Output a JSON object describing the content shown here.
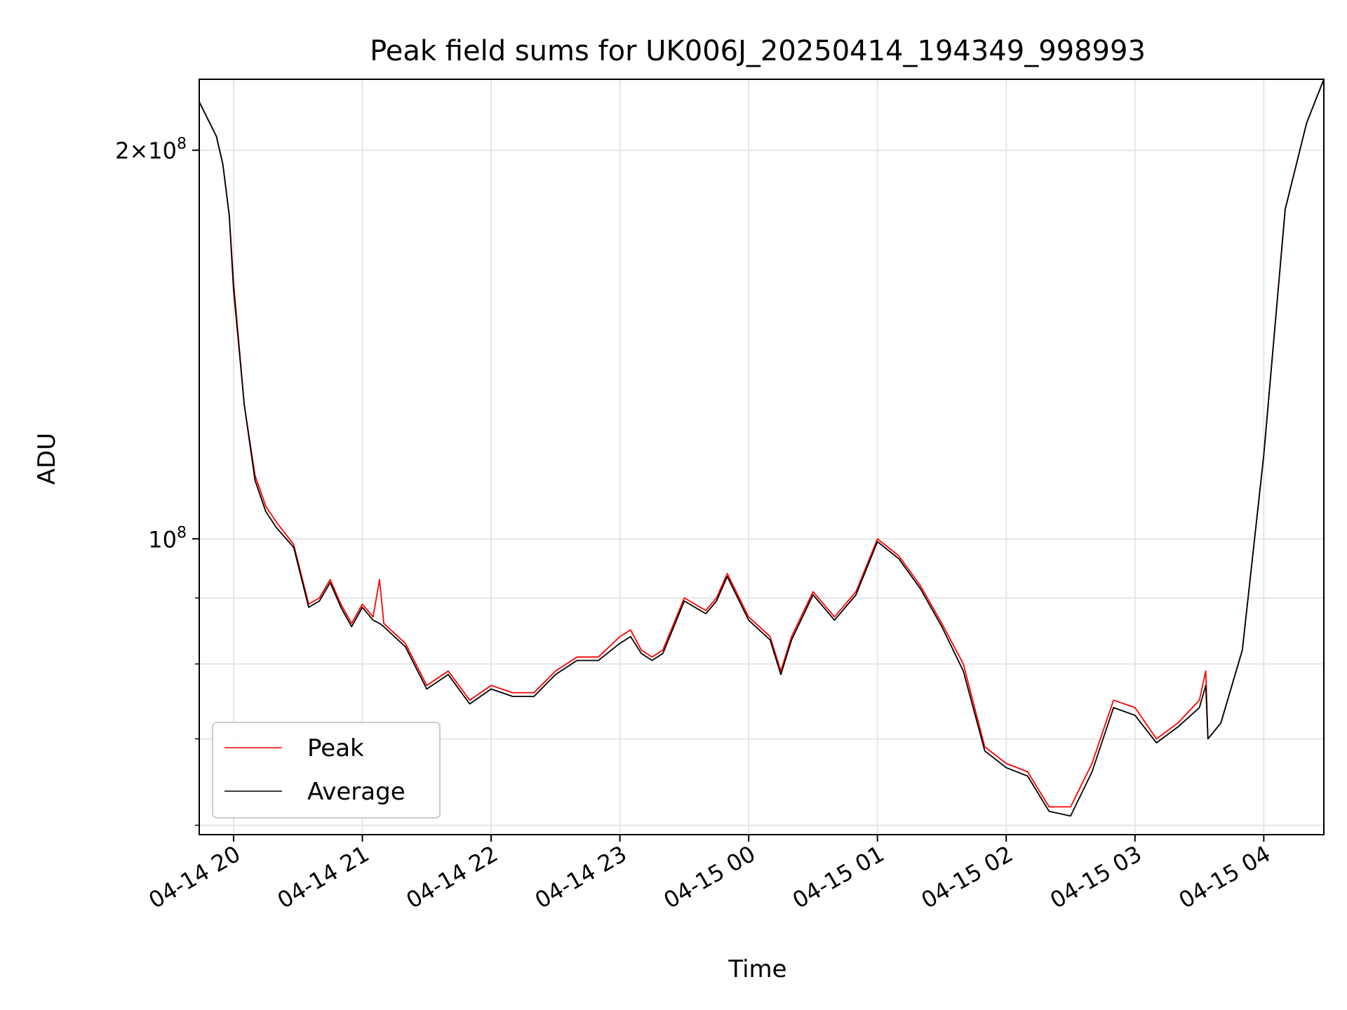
{
  "chart_data": {
    "type": "line",
    "title": "Peak field sums for UK006J_20250414_194349_998993",
    "xlabel": "Time",
    "ylabel": "ADU",
    "y_scale": "log",
    "grid": true,
    "legend_position": "lower-left",
    "xlim": [
      "2025-04-14 19:44",
      "2025-04-15 04:28"
    ],
    "ylim": [
      59000000,
      227000000
    ],
    "x_ticks": [
      "2025-04-14 20:00",
      "2025-04-14 21:00",
      "2025-04-14 22:00",
      "2025-04-14 23:00",
      "2025-04-15 00:00",
      "2025-04-15 01:00",
      "2025-04-15 02:00",
      "2025-04-15 03:00",
      "2025-04-15 04:00"
    ],
    "x_tick_labels": [
      "04-14 20",
      "04-14 21",
      "04-14 22",
      "04-14 23",
      "04-15 00",
      "04-15 01",
      "04-15 02",
      "04-15 03",
      "04-15 04"
    ],
    "y_major_ticks": [
      100000000,
      200000000
    ],
    "y_major_tick_labels": [
      {
        "mantissa": "",
        "base": "10",
        "exp": "8"
      },
      {
        "mantissa": "2×",
        "base": "10",
        "exp": "8"
      }
    ],
    "y_minor_ticks": [
      60000000,
      70000000,
      80000000,
      90000000
    ],
    "series": [
      {
        "name": "Peak",
        "color": "#ff0000",
        "points": [
          [
            "2025-04-14 19:44",
            218000000
          ],
          [
            "2025-04-14 19:52",
            205000000
          ],
          [
            "2025-04-14 19:55",
            195000000
          ],
          [
            "2025-04-14 19:58",
            178000000
          ],
          [
            "2025-04-14 20:00",
            158000000
          ],
          [
            "2025-04-14 20:05",
            127000000
          ],
          [
            "2025-04-14 20:10",
            112000000
          ],
          [
            "2025-04-14 20:15",
            106000000
          ],
          [
            "2025-04-14 20:20",
            103000000
          ],
          [
            "2025-04-14 20:28",
            99000000
          ],
          [
            "2025-04-14 20:35",
            89000000
          ],
          [
            "2025-04-14 20:40",
            90000000
          ],
          [
            "2025-04-14 20:45",
            93000000
          ],
          [
            "2025-04-14 20:50",
            89000000
          ],
          [
            "2025-04-14 20:55",
            86000000
          ],
          [
            "2025-04-14 21:00",
            89000000
          ],
          [
            "2025-04-14 21:05",
            87000000
          ],
          [
            "2025-04-14 21:08",
            93000000
          ],
          [
            "2025-04-14 21:10",
            86000000
          ],
          [
            "2025-04-14 21:20",
            83000000
          ],
          [
            "2025-04-14 21:30",
            77000000
          ],
          [
            "2025-04-14 21:40",
            79000000
          ],
          [
            "2025-04-14 21:50",
            75000000
          ],
          [
            "2025-04-14 22:00",
            77000000
          ],
          [
            "2025-04-14 22:10",
            76000000
          ],
          [
            "2025-04-14 22:20",
            76000000
          ],
          [
            "2025-04-14 22:30",
            79000000
          ],
          [
            "2025-04-14 22:40",
            81000000
          ],
          [
            "2025-04-14 22:50",
            81000000
          ],
          [
            "2025-04-14 23:00",
            84000000
          ],
          [
            "2025-04-14 23:05",
            85000000
          ],
          [
            "2025-04-14 23:10",
            82000000
          ],
          [
            "2025-04-14 23:15",
            81000000
          ],
          [
            "2025-04-14 23:20",
            82000000
          ],
          [
            "2025-04-14 23:30",
            90000000
          ],
          [
            "2025-04-14 23:40",
            88000000
          ],
          [
            "2025-04-14 23:45",
            90000000
          ],
          [
            "2025-04-14 23:50",
            94000000
          ],
          [
            "2025-04-15 00:00",
            87000000
          ],
          [
            "2025-04-15 00:10",
            84000000
          ],
          [
            "2025-04-15 00:15",
            79000000
          ],
          [
            "2025-04-15 00:20",
            84000000
          ],
          [
            "2025-04-15 00:30",
            91000000
          ],
          [
            "2025-04-15 00:40",
            87000000
          ],
          [
            "2025-04-15 00:50",
            91000000
          ],
          [
            "2025-04-15 01:00",
            100000000
          ],
          [
            "2025-04-15 01:10",
            97000000
          ],
          [
            "2025-04-15 01:20",
            92000000
          ],
          [
            "2025-04-15 01:30",
            86000000
          ],
          [
            "2025-04-15 01:40",
            80000000
          ],
          [
            "2025-04-15 01:50",
            69000000
          ],
          [
            "2025-04-15 02:00",
            67000000
          ],
          [
            "2025-04-15 02:10",
            66000000
          ],
          [
            "2025-04-15 02:20",
            62000000
          ],
          [
            "2025-04-15 02:30",
            62000000
          ],
          [
            "2025-04-15 02:40",
            67000000
          ],
          [
            "2025-04-15 02:50",
            75000000
          ],
          [
            "2025-04-15 03:00",
            74000000
          ],
          [
            "2025-04-15 03:10",
            70000000
          ],
          [
            "2025-04-15 03:20",
            72000000
          ],
          [
            "2025-04-15 03:30",
            75000000
          ],
          [
            "2025-04-15 03:33",
            79000000
          ],
          [
            "2025-04-15 03:34",
            70000000
          ],
          [
            "2025-04-15 03:40",
            72000000
          ],
          [
            "2025-04-15 03:50",
            82000000
          ],
          [
            "2025-04-15 04:00",
            116000000
          ],
          [
            "2025-04-15 04:10",
            180000000
          ],
          [
            "2025-04-15 04:20",
            210000000
          ],
          [
            "2025-04-15 04:28",
            227000000
          ]
        ]
      },
      {
        "name": "Average",
        "color": "#000000",
        "points": [
          [
            "2025-04-14 19:44",
            218000000
          ],
          [
            "2025-04-14 19:52",
            205000000
          ],
          [
            "2025-04-14 19:55",
            195000000
          ],
          [
            "2025-04-14 19:58",
            178000000
          ],
          [
            "2025-04-14 20:00",
            156000000
          ],
          [
            "2025-04-14 20:05",
            127000000
          ],
          [
            "2025-04-14 20:10",
            111000000
          ],
          [
            "2025-04-14 20:15",
            105000000
          ],
          [
            "2025-04-14 20:20",
            102000000
          ],
          [
            "2025-04-14 20:28",
            98500000
          ],
          [
            "2025-04-14 20:35",
            88500000
          ],
          [
            "2025-04-14 20:40",
            89500000
          ],
          [
            "2025-04-14 20:45",
            92500000
          ],
          [
            "2025-04-14 20:50",
            88500000
          ],
          [
            "2025-04-14 20:55",
            85500000
          ],
          [
            "2025-04-14 21:00",
            88500000
          ],
          [
            "2025-04-14 21:05",
            86500000
          ],
          [
            "2025-04-14 21:08",
            86000000
          ],
          [
            "2025-04-14 21:10",
            85500000
          ],
          [
            "2025-04-14 21:20",
            82500000
          ],
          [
            "2025-04-14 21:30",
            76500000
          ],
          [
            "2025-04-14 21:40",
            78500000
          ],
          [
            "2025-04-14 21:50",
            74500000
          ],
          [
            "2025-04-14 22:00",
            76500000
          ],
          [
            "2025-04-14 22:10",
            75500000
          ],
          [
            "2025-04-14 22:20",
            75500000
          ],
          [
            "2025-04-14 22:30",
            78500000
          ],
          [
            "2025-04-14 22:40",
            80500000
          ],
          [
            "2025-04-14 22:50",
            80500000
          ],
          [
            "2025-04-14 23:00",
            83000000
          ],
          [
            "2025-04-14 23:05",
            84000000
          ],
          [
            "2025-04-14 23:10",
            81500000
          ],
          [
            "2025-04-14 23:15",
            80500000
          ],
          [
            "2025-04-14 23:20",
            81500000
          ],
          [
            "2025-04-14 23:30",
            89500000
          ],
          [
            "2025-04-14 23:40",
            87500000
          ],
          [
            "2025-04-14 23:45",
            89500000
          ],
          [
            "2025-04-14 23:50",
            93500000
          ],
          [
            "2025-04-15 00:00",
            86500000
          ],
          [
            "2025-04-15 00:10",
            83500000
          ],
          [
            "2025-04-15 00:15",
            78500000
          ],
          [
            "2025-04-15 00:20",
            83500000
          ],
          [
            "2025-04-15 00:30",
            90500000
          ],
          [
            "2025-04-15 00:40",
            86500000
          ],
          [
            "2025-04-15 00:50",
            90500000
          ],
          [
            "2025-04-15 01:00",
            99500000
          ],
          [
            "2025-04-15 01:10",
            96500000
          ],
          [
            "2025-04-15 01:20",
            91500000
          ],
          [
            "2025-04-15 01:30",
            85500000
          ],
          [
            "2025-04-15 01:40",
            79000000
          ],
          [
            "2025-04-15 01:50",
            68500000
          ],
          [
            "2025-04-15 02:00",
            66500000
          ],
          [
            "2025-04-15 02:10",
            65500000
          ],
          [
            "2025-04-15 02:20",
            61500000
          ],
          [
            "2025-04-15 02:30",
            61000000
          ],
          [
            "2025-04-15 02:40",
            66000000
          ],
          [
            "2025-04-15 02:50",
            74000000
          ],
          [
            "2025-04-15 03:00",
            73000000
          ],
          [
            "2025-04-15 03:10",
            69500000
          ],
          [
            "2025-04-15 03:20",
            71500000
          ],
          [
            "2025-04-15 03:30",
            74000000
          ],
          [
            "2025-04-15 03:33",
            77000000
          ],
          [
            "2025-04-15 03:34",
            70000000
          ],
          [
            "2025-04-15 03:40",
            72000000
          ],
          [
            "2025-04-15 03:50",
            82000000
          ],
          [
            "2025-04-15 04:00",
            116000000
          ],
          [
            "2025-04-15 04:10",
            180000000
          ],
          [
            "2025-04-15 04:20",
            210000000
          ],
          [
            "2025-04-15 04:28",
            227000000
          ]
        ]
      }
    ]
  }
}
